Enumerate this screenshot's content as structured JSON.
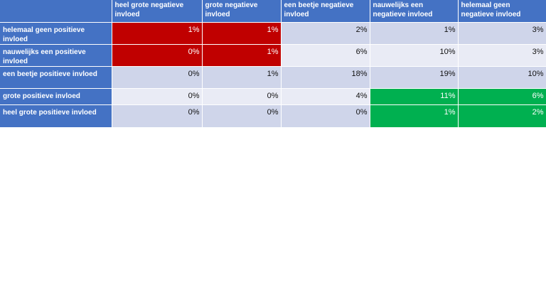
{
  "chart_data": {
    "type": "heatmap",
    "columns": [
      "heel grote negatieve invloed",
      "grote negatieve invloed",
      "een beetje negatieve invloed",
      "nauwelijks een negatieve invloed",
      "helemaal geen negatieve invloed"
    ],
    "rows": [
      "helemaal geen positieve invloed",
      "nauwelijks een positieve invloed",
      "een beetje positieve invloed",
      "grote positieve invloed",
      "heel grote positieve invloed"
    ],
    "values": [
      [
        "1%",
        "1%",
        "2%",
        "1%",
        "3%"
      ],
      [
        "0%",
        "1%",
        "6%",
        "10%",
        "3%"
      ],
      [
        "0%",
        "1%",
        "18%",
        "19%",
        "10%"
      ],
      [
        "0%",
        "0%",
        "4%",
        "11%",
        "6%"
      ],
      [
        "0%",
        "0%",
        "0%",
        "1%",
        "2%"
      ]
    ],
    "colors": {
      "header": "#4472c4",
      "band_dark": "#cfd5ea",
      "band_light": "#e9ebf5",
      "red": "#c00000",
      "green": "#00b050"
    },
    "highlights": {
      "red": [
        [
          0,
          0
        ],
        [
          0,
          1
        ],
        [
          1,
          0
        ],
        [
          1,
          1
        ]
      ],
      "green": [
        [
          3,
          3
        ],
        [
          3,
          4
        ],
        [
          4,
          3
        ],
        [
          4,
          4
        ]
      ]
    }
  }
}
